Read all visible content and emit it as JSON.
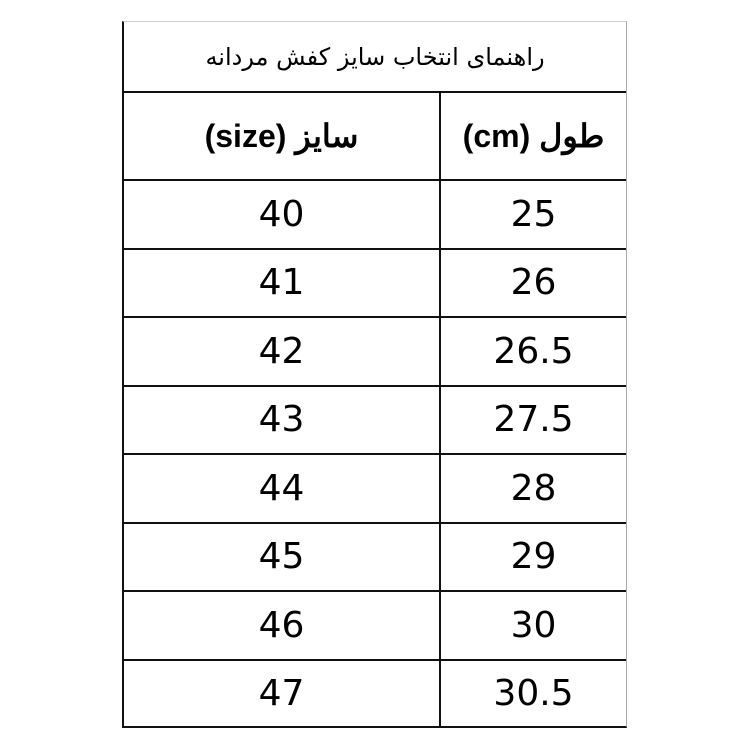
{
  "title": "راهنمای انتخاب سایز کفش مردانه",
  "headers": {
    "size": "سایز (size)",
    "length": "طول (cm)"
  },
  "rows": [
    {
      "size": "40",
      "length": "25"
    },
    {
      "size": "41",
      "length": "26"
    },
    {
      "size": "42",
      "length": "26.5"
    },
    {
      "size": "43",
      "length": "27.5"
    },
    {
      "size": "44",
      "length": "28"
    },
    {
      "size": "45",
      "length": "29"
    },
    {
      "size": "46",
      "length": "30"
    },
    {
      "size": "47",
      "length": "30.5"
    }
  ]
}
